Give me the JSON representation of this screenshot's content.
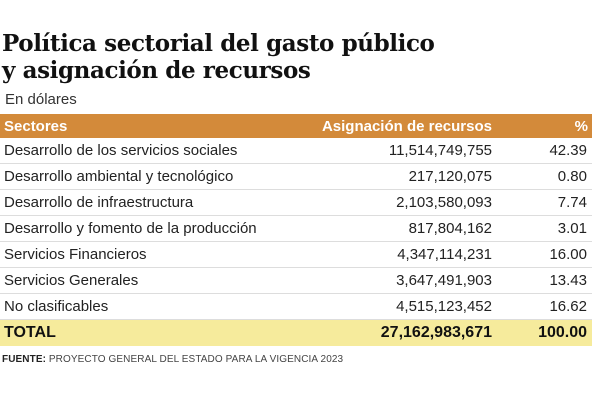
{
  "title_line1": "Política sectorial del gasto público",
  "title_line2": "y asignación de recursos",
  "subtitle": "En dólares",
  "headers": {
    "sector": "Sectores",
    "amount": "Asignación de recursos",
    "pct": "%"
  },
  "rows": [
    {
      "sector": "Desarrollo de los servicios sociales",
      "amount": "11,514,749,755",
      "pct": "42.39"
    },
    {
      "sector": "Desarrollo ambiental y tecnológico",
      "amount": "217,120,075",
      "pct": "0.80"
    },
    {
      "sector": "Desarrollo de infraestructura",
      "amount": "2,103,580,093",
      "pct": "7.74"
    },
    {
      "sector": "Desarrollo y fomento de la producción",
      "amount": "817,804,162",
      "pct": "3.01"
    },
    {
      "sector": "Servicios Financieros",
      "amount": "4,347,114,231",
      "pct": "16.00"
    },
    {
      "sector": "Servicios Generales",
      "amount": "3,647,491,903",
      "pct": "13.43"
    },
    {
      "sector": "No clasificables",
      "amount": "4,515,123,452",
      "pct": "16.62"
    }
  ],
  "total": {
    "label": "TOTAL",
    "amount": "27,162,983,671",
    "pct": "100.00"
  },
  "source": {
    "label": "FUENTE:",
    "text": " PROYECTO GENERAL DEL ESTADO PARA LA VIGENCIA 2023"
  },
  "colors": {
    "header_bg": "#d38a3a",
    "total_bg": "#f6eb9c"
  }
}
